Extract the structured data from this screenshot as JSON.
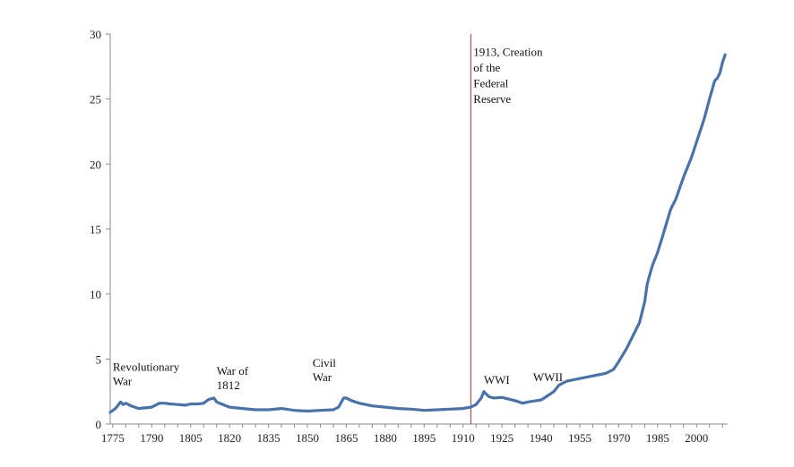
{
  "chart_data": {
    "type": "line",
    "title": "",
    "xlabel": "",
    "ylabel": "",
    "xlim": [
      1775,
      2012
    ],
    "ylim": [
      0,
      30
    ],
    "x_ticks": [
      1775,
      1790,
      1805,
      1820,
      1835,
      1850,
      1865,
      1880,
      1895,
      1910,
      1925,
      1940,
      1955,
      1970,
      1985,
      2000
    ],
    "y_ticks": [
      0,
      5,
      10,
      15,
      20,
      25,
      30
    ],
    "grid": false,
    "legend": "none",
    "series_color": "#4a72aa",
    "marker_line_color": "#9b3a3a",
    "series": [
      {
        "x": [
          1774,
          1776,
          1778,
          1779,
          1780,
          1782,
          1785,
          1790,
          1793,
          1795,
          1797,
          1800,
          1803,
          1805,
          1808,
          1810,
          1812,
          1814,
          1815,
          1818,
          1820,
          1825,
          1830,
          1835,
          1840,
          1845,
          1850,
          1855,
          1860,
          1862,
          1864,
          1865,
          1867,
          1870,
          1875,
          1880,
          1885,
          1890,
          1895,
          1900,
          1905,
          1910,
          1913,
          1915,
          1917,
          1918,
          1920,
          1922,
          1925,
          1930,
          1933,
          1935,
          1940,
          1942,
          1945,
          1947,
          1950,
          1955,
          1960,
          1965,
          1968,
          1970,
          1973,
          1975,
          1978,
          1980,
          1981,
          1983,
          1985,
          1987,
          1990,
          1992,
          1995,
          1998,
          2000,
          2003,
          2005,
          2007,
          2008,
          2009,
          2010,
          2011
        ],
        "y": [
          0.9,
          1.2,
          1.7,
          1.5,
          1.6,
          1.4,
          1.2,
          1.3,
          1.6,
          1.6,
          1.55,
          1.5,
          1.45,
          1.55,
          1.55,
          1.6,
          1.9,
          2.0,
          1.7,
          1.45,
          1.3,
          1.2,
          1.1,
          1.1,
          1.2,
          1.05,
          1.0,
          1.05,
          1.1,
          1.3,
          2.0,
          2.0,
          1.8,
          1.6,
          1.4,
          1.3,
          1.2,
          1.15,
          1.05,
          1.1,
          1.15,
          1.2,
          1.3,
          1.5,
          2.0,
          2.5,
          2.1,
          2.0,
          2.05,
          1.8,
          1.6,
          1.7,
          1.85,
          2.1,
          2.5,
          3.0,
          3.3,
          3.5,
          3.7,
          3.9,
          4.2,
          4.8,
          5.8,
          6.6,
          7.8,
          9.4,
          10.8,
          12.2,
          13.2,
          14.5,
          16.5,
          17.3,
          19.0,
          20.5,
          21.7,
          23.5,
          25.0,
          26.4,
          26.6,
          27.0,
          27.8,
          28.4
        ]
      }
    ],
    "reference_line": {
      "x": 1913
    },
    "annotations": [
      {
        "lines": [
          "Revolutionary",
          "War"
        ]
      },
      {
        "lines": [
          "War of",
          "1812"
        ]
      },
      {
        "lines": [
          "Civil",
          "War"
        ]
      },
      {
        "lines": [
          "1913, Creation",
          "of the",
          "Federal",
          "Reserve"
        ]
      },
      {
        "lines": [
          "WWI"
        ]
      },
      {
        "lines": [
          "WWII"
        ]
      }
    ]
  }
}
